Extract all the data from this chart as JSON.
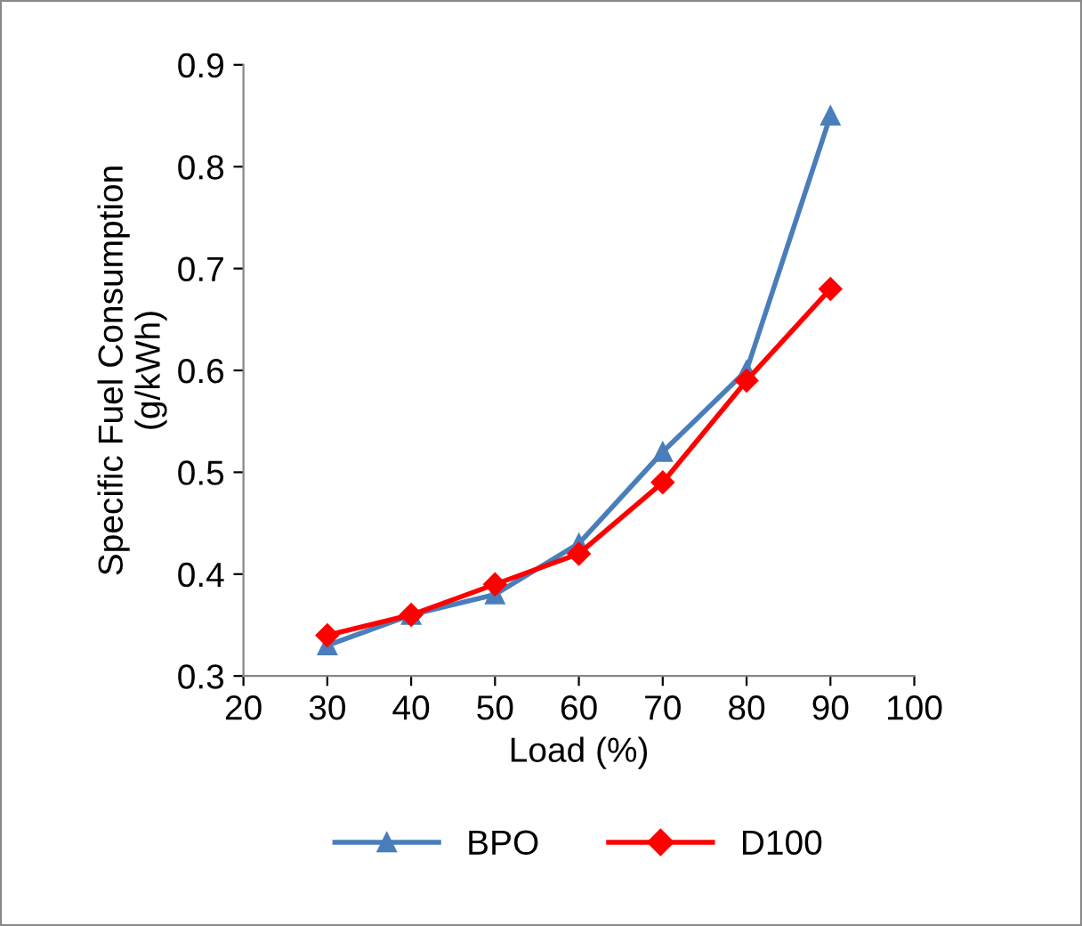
{
  "chart_data": {
    "type": "line",
    "xlabel": "Load (%)",
    "ylabel": "Specific Fuel Consumption\n(g/kWh)",
    "x": [
      30,
      40,
      50,
      60,
      70,
      80,
      90
    ],
    "series": [
      {
        "name": "BPO",
        "color": "#4a7ebb",
        "marker": "triangle",
        "values": [
          0.33,
          0.36,
          0.38,
          0.43,
          0.52,
          0.6,
          0.85
        ]
      },
      {
        "name": "D100",
        "color": "#ff0000",
        "marker": "diamond",
        "values": [
          0.34,
          0.36,
          0.39,
          0.42,
          0.49,
          0.59,
          0.68
        ]
      }
    ],
    "xlim": [
      20,
      100
    ],
    "xticks": [
      20,
      30,
      40,
      50,
      60,
      70,
      80,
      90,
      100
    ],
    "ylim": [
      0.3,
      0.9
    ],
    "yticks": [
      0.3,
      0.4,
      0.5,
      0.6,
      0.7,
      0.8,
      0.9
    ],
    "grid": false,
    "legend": "bottom",
    "line_style": "solid"
  }
}
